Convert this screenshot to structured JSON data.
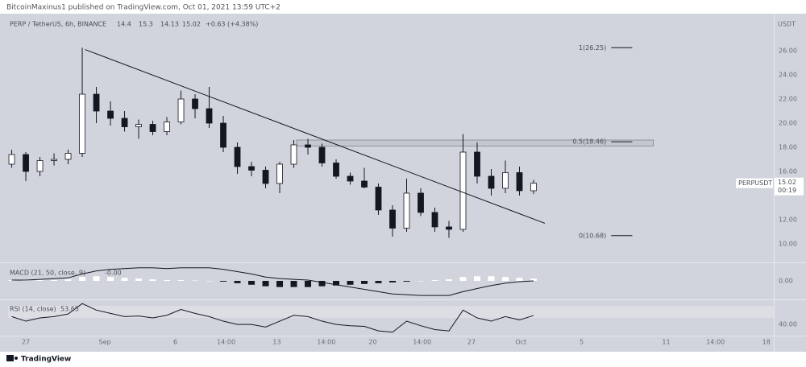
{
  "header": "BitcoinMaxinus1 published on TradingView.com, Oct 01, 2021 13:59 UTC+2",
  "footer": "TradingView",
  "chart_data": {
    "type": "candlestick",
    "symbol": "PERP / TetherUS, 6h, BINANCE",
    "change": "+0.63 (+4.38%)",
    "currency": "USDT",
    "ticker": "PERPUSDT",
    "countdown": "00:19",
    "x": [
      -1,
      0,
      1,
      2,
      3,
      4,
      5,
      6,
      7,
      8,
      9,
      10,
      11,
      12,
      13,
      14,
      15,
      16,
      17,
      18,
      19,
      20,
      21,
      22,
      23,
      24,
      25,
      26,
      27,
      28,
      29,
      30,
      31,
      32,
      33,
      34,
      35,
      36
    ],
    "open": [
      16.6,
      17.4,
      16.0,
      16.9,
      17.0,
      17.5,
      22.4,
      21.0,
      20.4,
      19.7,
      19.9,
      19.3,
      20.1,
      22.0,
      21.2,
      20.0,
      18.0,
      16.4,
      16.1,
      15.0,
      16.6,
      18.2,
      18.0,
      16.7,
      15.6,
      15.2,
      14.7,
      12.8,
      11.3,
      14.2,
      12.6,
      11.4,
      11.2,
      17.6,
      15.6,
      14.6,
      15.9,
      14.4
    ],
    "high": [
      17.8,
      17.6,
      17.2,
      17.5,
      17.8,
      26.25,
      23.0,
      21.8,
      21.0,
      20.3,
      20.2,
      20.5,
      22.7,
      22.4,
      23.0,
      20.6,
      18.4,
      16.8,
      16.4,
      16.8,
      18.6,
      18.7,
      18.3,
      17.0,
      15.9,
      16.3,
      15.0,
      13.2,
      15.4,
      14.6,
      13.0,
      11.9,
      19.1,
      18.4,
      16.2,
      16.9,
      16.4,
      15.3
    ],
    "low": [
      16.3,
      15.2,
      15.6,
      16.5,
      16.6,
      17.2,
      20.0,
      19.8,
      19.3,
      18.7,
      19.0,
      19.0,
      19.9,
      20.4,
      19.6,
      17.6,
      15.8,
      15.6,
      14.6,
      14.2,
      16.3,
      17.4,
      16.4,
      15.4,
      14.9,
      14.6,
      12.4,
      10.6,
      11.0,
      12.3,
      11.0,
      10.5,
      11.0,
      15.0,
      14.0,
      14.2,
      14.0,
      14.13
    ],
    "close": [
      17.4,
      16.0,
      16.9,
      17.0,
      17.5,
      22.4,
      21.0,
      20.4,
      19.7,
      19.9,
      19.3,
      20.1,
      22.0,
      21.2,
      20.0,
      18.0,
      16.4,
      16.1,
      15.0,
      16.6,
      18.2,
      18.0,
      16.7,
      15.6,
      15.2,
      14.7,
      12.8,
      11.3,
      14.2,
      12.6,
      11.4,
      11.2,
      17.6,
      15.6,
      14.6,
      15.9,
      14.4,
      15.02
    ],
    "xlim": [
      -1.26,
      53.03
    ],
    "xticks": [
      {
        "value": 0,
        "label": "27"
      },
      {
        "value": 5.6,
        "label": "Sep"
      },
      {
        "value": 10.6,
        "label": "6"
      },
      {
        "value": 14.2,
        "label": "14:00"
      },
      {
        "value": 17.8,
        "label": "13"
      },
      {
        "value": 21.3,
        "label": "14:00"
      },
      {
        "value": 24.6,
        "label": "20"
      },
      {
        "value": 28.1,
        "label": "14:00"
      },
      {
        "value": 31.6,
        "label": "27"
      },
      {
        "value": 35.1,
        "label": "Oct"
      },
      {
        "value": 39.4,
        "label": "5"
      },
      {
        "value": 45.4,
        "label": "11"
      },
      {
        "value": 48.9,
        "label": "14:00"
      },
      {
        "value": 52.5,
        "label": "18"
      }
    ],
    "ylim": [
      8.53,
      28.87
    ],
    "yticks": [
      {
        "value": 10,
        "label": "10.00"
      },
      {
        "value": 12,
        "label": "12.00"
      },
      {
        "value": 16,
        "label": "16.00"
      },
      {
        "value": 18,
        "label": "18.00"
      },
      {
        "value": 20,
        "label": "20.00"
      },
      {
        "value": 22,
        "label": "22.00"
      },
      {
        "value": 24,
        "label": "24.00"
      },
      {
        "value": 26,
        "label": "26.00"
      }
    ],
    "trendline": {
      "x": [
        4.2,
        36.8
      ],
      "y": [
        26.1,
        11.7
      ]
    },
    "zone": {
      "x": [
        19.2,
        44.5
      ],
      "y": [
        18.1,
        18.6
      ]
    },
    "fib_x": [
      41.5,
      43.0
    ],
    "fib_levels": [
      {
        "label": "1(26.25)",
        "value": 26.25
      },
      {
        "label": "0.5(18.46)",
        "value": 18.46
      },
      {
        "label": "0(10.68)",
        "value": 10.68
      }
    ],
    "macd": {
      "title": "MACD (21, 50, close, 9)",
      "value_label": "-0.00",
      "line": [
        0.1,
        0.1,
        0.2,
        0.3,
        0.4,
        0.9,
        1.3,
        1.5,
        1.6,
        1.7,
        1.7,
        1.6,
        1.7,
        1.7,
        1.7,
        1.5,
        1.2,
        0.9,
        0.5,
        0.3,
        0.2,
        0.1,
        -0.2,
        -0.5,
        -0.8,
        -1.1,
        -1.4,
        -1.7,
        -1.8,
        -1.9,
        -1.9,
        -1.9,
        -1.4,
        -1.0,
        -0.6,
        -0.3,
        -0.1,
        0
      ],
      "histogram": [
        0.1,
        0.1,
        0.1,
        0.1,
        0.2,
        0.5,
        0.6,
        0.5,
        0.4,
        0.3,
        0.2,
        0.1,
        0.1,
        0.05,
        0,
        -0.1,
        -0.3,
        -0.5,
        -0.7,
        -0.8,
        -0.8,
        -0.8,
        -0.7,
        -0.6,
        -0.5,
        -0.4,
        -0.3,
        -0.2,
        -0.1,
        0,
        0.1,
        0.2,
        0.5,
        0.6,
        0.6,
        0.5,
        0.4,
        0.3
      ],
      "ylim": [
        -2.2,
        2.2
      ],
      "yticks": [
        {
          "value": 0,
          "label": "0.00"
        }
      ]
    },
    "rsi": {
      "title": "RSI (14, close)",
      "values": [
        52,
        45,
        50,
        52,
        56,
        72,
        62,
        57,
        52,
        53,
        50,
        54,
        63,
        57,
        52,
        45,
        40,
        40,
        36,
        45,
        54,
        52,
        45,
        40,
        38,
        37,
        30,
        28,
        45,
        38,
        32,
        30,
        62,
        50,
        45,
        52,
        47,
        53.65
      ],
      "ylim": [
        24,
        76
      ],
      "yticks": [
        {
          "value": 40,
          "label": "40.00"
        }
      ]
    }
  }
}
